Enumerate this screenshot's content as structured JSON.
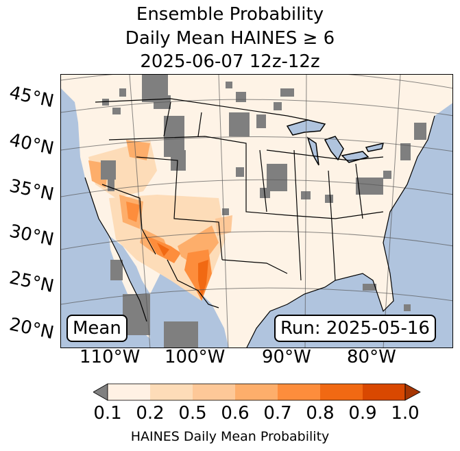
{
  "title": {
    "line1": "Ensemble Probability",
    "line2": "Daily Mean HAINES ≥ 6",
    "line3": "2025-06-07 12z-12z"
  },
  "map": {
    "lat_labels": [
      "45°N",
      "40°N",
      "35°N",
      "30°N",
      "25°N",
      "20°N"
    ],
    "lon_labels": [
      "110°W",
      "100°W",
      "90°W",
      "80°W"
    ],
    "stat_box": "Mean",
    "run_box": "Run: 2025-05-16",
    "colors": {
      "ocean": "#b0c4de",
      "land": "#fef3e6",
      "missing": "#7f7f7f"
    }
  },
  "colorbar": {
    "ticks": [
      "0.1",
      "0.2",
      "0.5",
      "0.6",
      "0.7",
      "0.8",
      "0.9",
      "1.0"
    ],
    "colors": [
      "#808080",
      "#fff1e4",
      "#fddcb8",
      "#fdc898",
      "#fdae6b",
      "#fd8d3c",
      "#f16913",
      "#d94801",
      "#a63603"
    ],
    "label": "HAINES Daily Mean Probability"
  }
}
